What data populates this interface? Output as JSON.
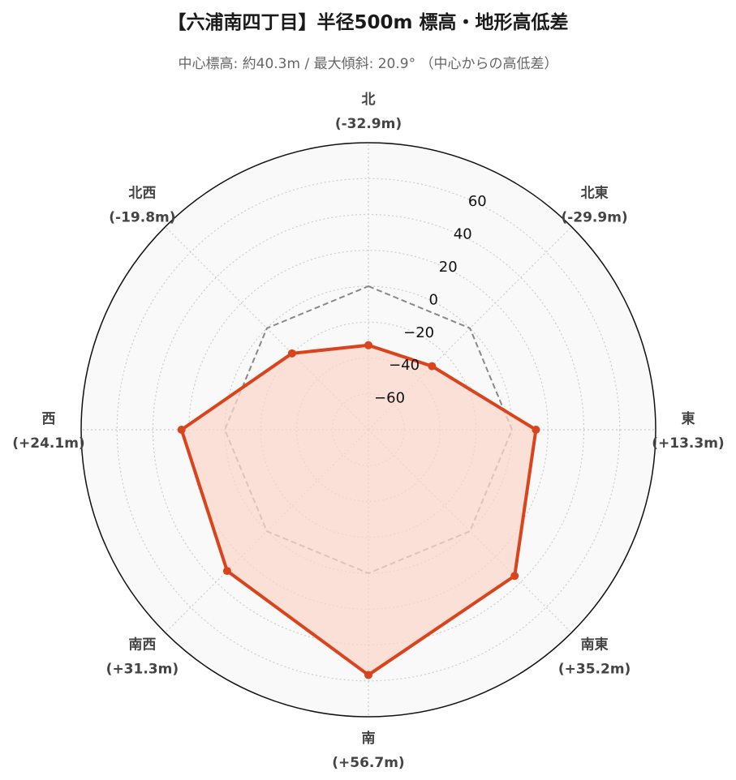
{
  "header": {
    "title": "【六浦南四丁目】半径500m 標高・地形高低差",
    "subtitle": "中心標高: 約40.3m / 最大傾斜: 20.9° （中心からの高低差）"
  },
  "chart_data": {
    "type": "radar",
    "title": "【六浦南四丁目】半径500m 標高・地形高低差",
    "subtitle": "中心標高: 約40.3m / 最大傾斜: 20.9° （中心からの高低差）",
    "categories": [
      "北",
      "北東",
      "東",
      "南東",
      "南",
      "南西",
      "西",
      "北西"
    ],
    "category_labels": [
      "(-32.9m)",
      "(-29.9m)",
      "(+13.3m)",
      "(+35.2m)",
      "(+56.7m)",
      "(+31.3m)",
      "(+24.1m)",
      "(-19.8m)"
    ],
    "series": [
      {
        "values": [
          -32.9,
          -29.9,
          13.3,
          35.2,
          56.7,
          31.3,
          24.1,
          -19.8
        ]
      },
      {
        "values": [
          0,
          0,
          0,
          0,
          0,
          0,
          0,
          0
        ]
      }
    ],
    "r_ticks": [
      -60,
      -40,
      -20,
      0,
      20,
      40,
      60
    ],
    "r_tick_labels": [
      "−60",
      "−40",
      "−20",
      "0",
      "20",
      "40",
      "60"
    ],
    "rlim": [
      -80,
      80
    ],
    "grid": true,
    "colors": {
      "series": "#d9441c",
      "fill": "#fbd7cc",
      "reference": "#888888",
      "background": "#f9f9f9",
      "grid": "#cccccc"
    }
  }
}
